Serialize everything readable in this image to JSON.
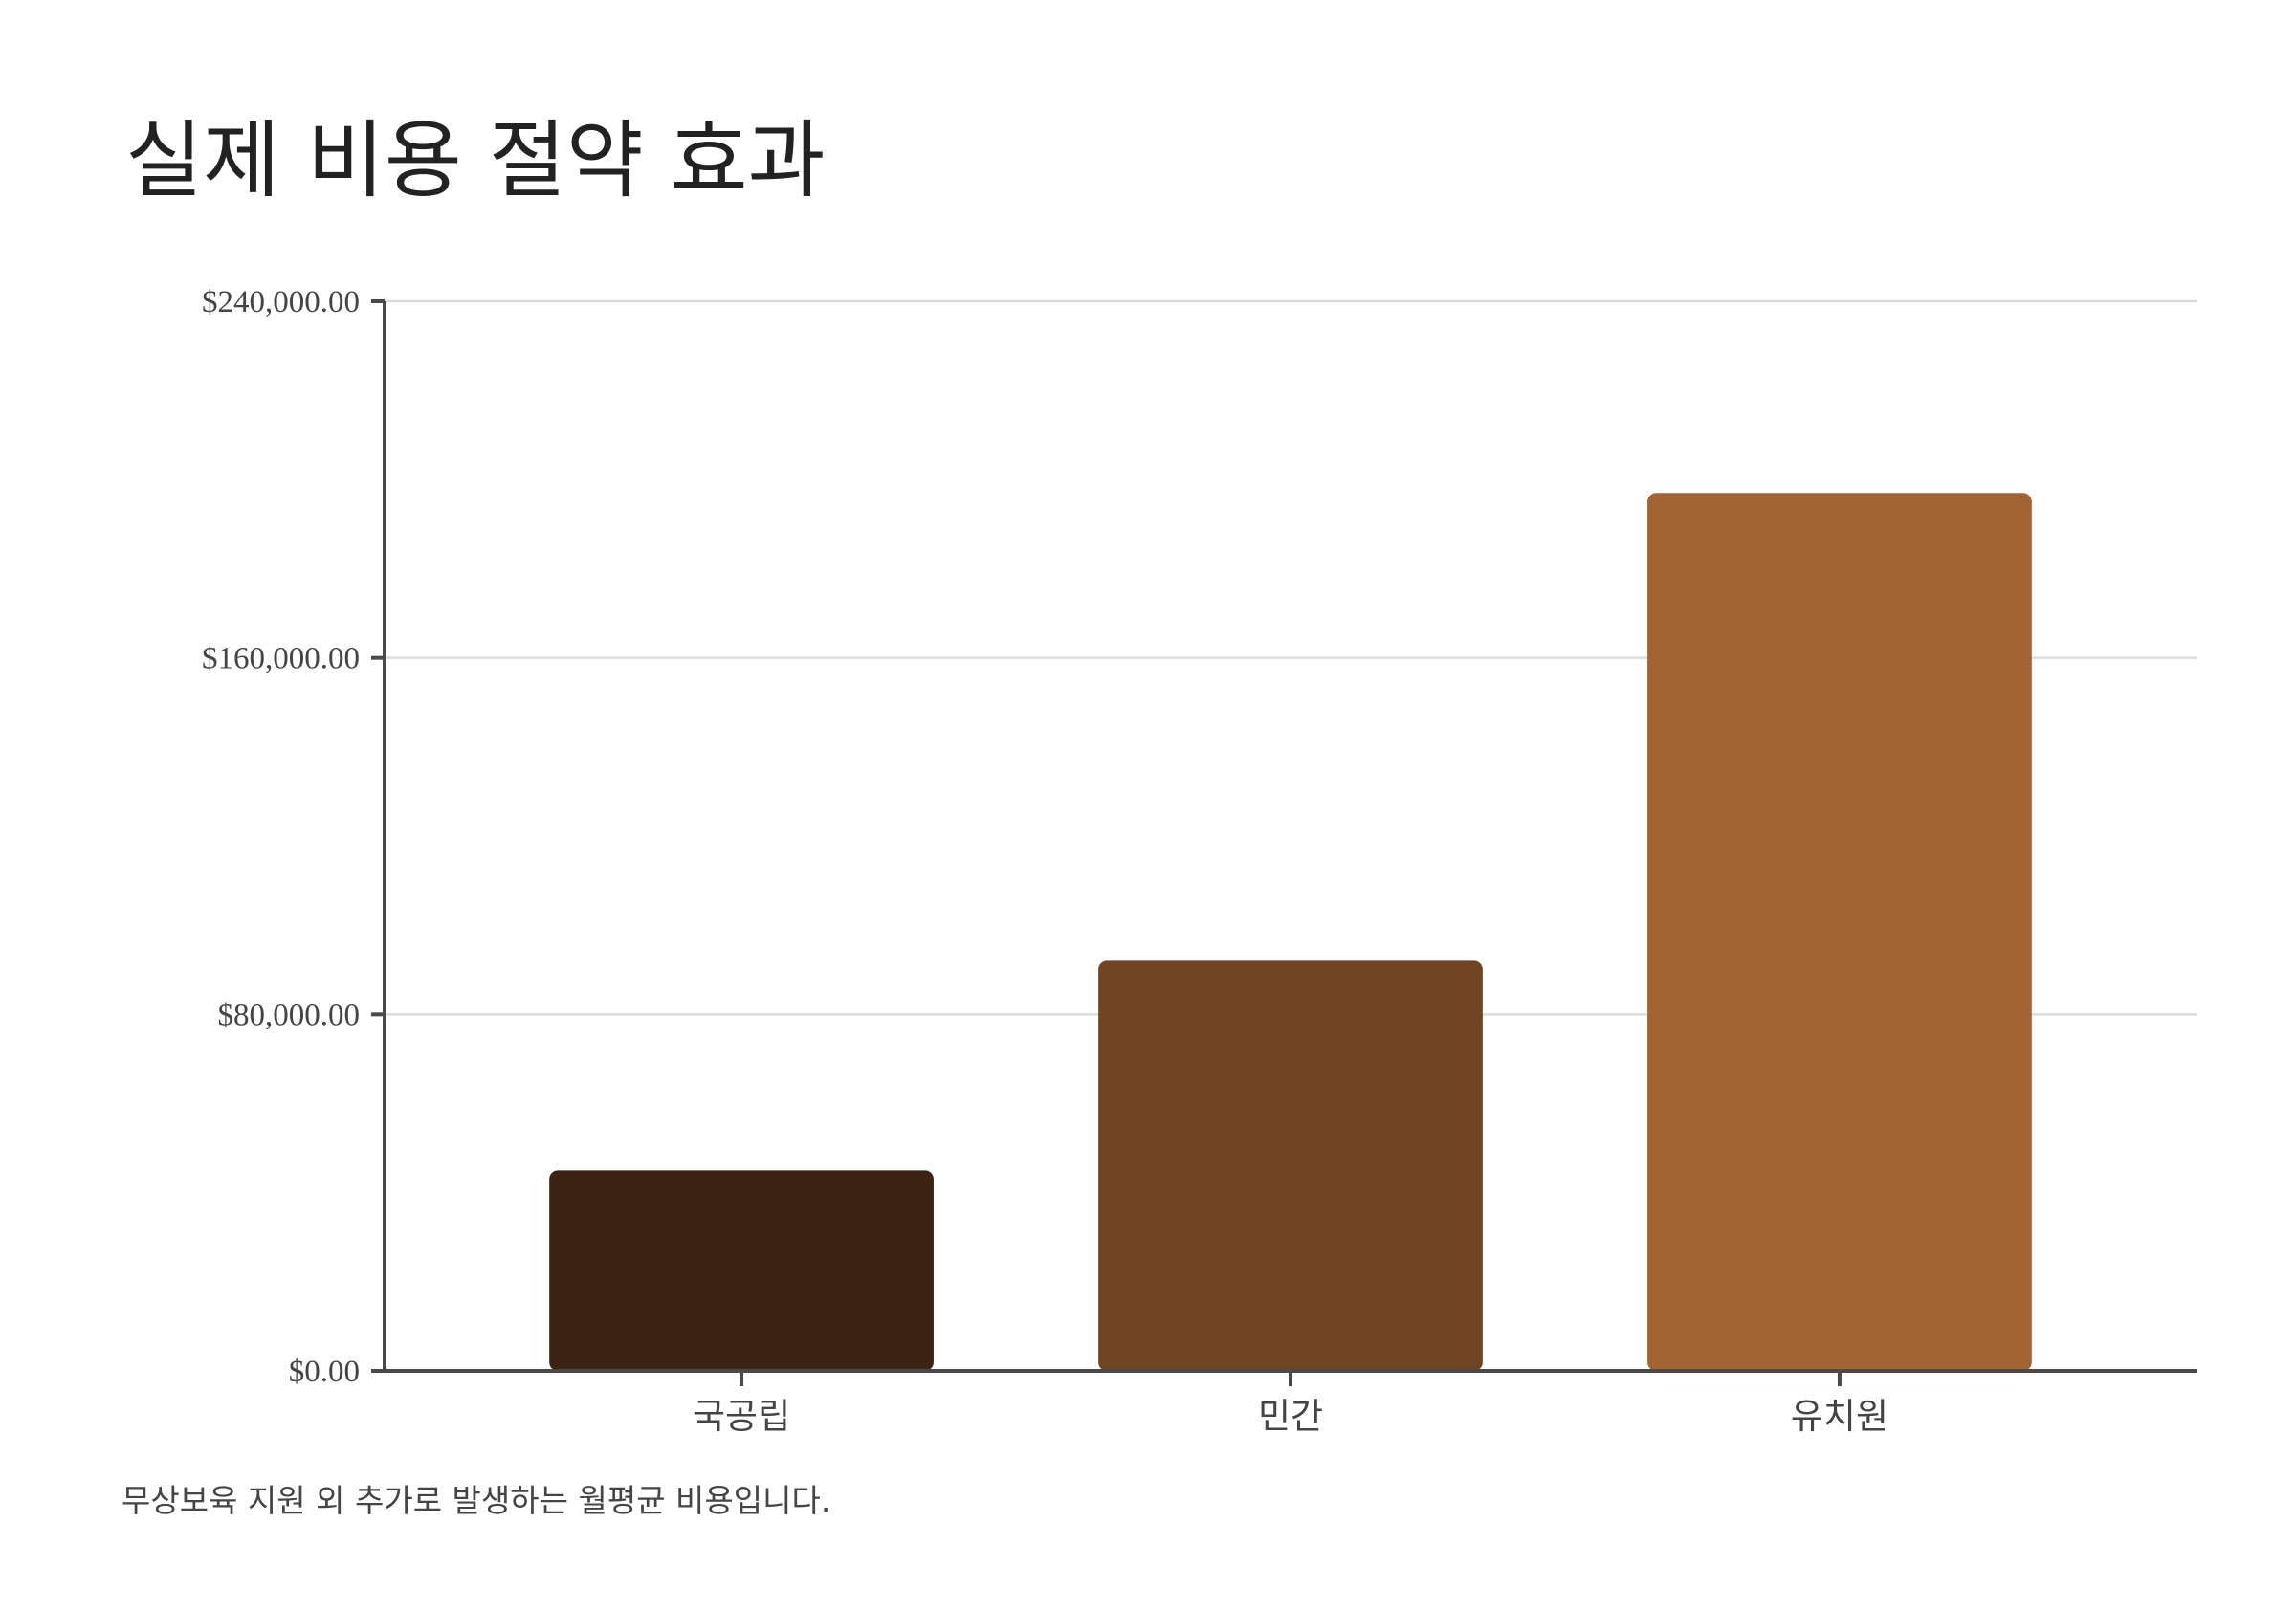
{
  "chart_data": {
    "type": "bar",
    "title": "실제 비용 절약 효과",
    "categories": [
      "국공립",
      "민간",
      "유치원"
    ],
    "values": [
      45000,
      92000,
      197000
    ],
    "colors": [
      "#3d2314",
      "#704524",
      "#a36433"
    ],
    "ylim": [
      0,
      240000
    ],
    "yticks": [
      {
        "value": 0,
        "label": "$0.00"
      },
      {
        "value": 80000,
        "label": "$80,000.00"
      },
      {
        "value": 160000,
        "label": "$160,000.00"
      },
      {
        "value": 240000,
        "label": "$240,000.00"
      }
    ],
    "grid": true,
    "caption": "무상보육 지원 외 추가로 발생하는 월평균 비용입니다."
  }
}
